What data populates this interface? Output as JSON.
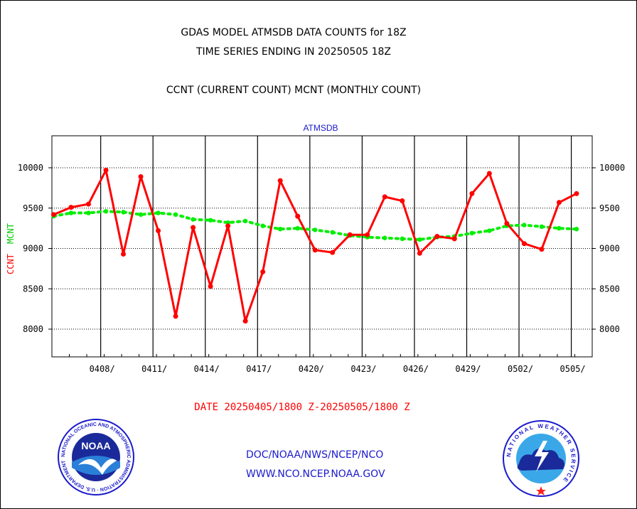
{
  "header": {
    "line1": "GDAS MODEL ATMSDB DATA COUNTS for 18Z",
    "line2": "TIME SERIES ENDING IN 20250505 18Z",
    "line3": "CCNT (CURRENT COUNT) MCNT (MONTHLY COUNT)"
  },
  "footer": {
    "date_range": "DATE 20250405/1800 Z-20250505/1800 Z",
    "org_line": "DOC/NOAA/NWS/NCEP/NCO",
    "url_line": "WWW.NCO.NCEP.NOAA.GOV"
  },
  "logos": {
    "noaa": {
      "icon": "noaa-logo-icon",
      "text": "NOAA",
      "ring_text": "NATIONAL OCEANIC AND ATMOSPHERIC ADMINISTRATION · U.S. DEPARTMENT OF COMMERCE"
    },
    "nws": {
      "icon": "nws-logo-icon",
      "ring_text": "NATIONAL WEATHER SERVICE"
    }
  },
  "colors": {
    "ccnt": "#ff0000",
    "mcnt": "#00ee00",
    "subtitle": "#1a1acc",
    "grid": "#000000"
  },
  "chart_data": {
    "type": "line",
    "title": "ATMSDB",
    "ylabel_left": [
      "CCNT",
      "MCNT"
    ],
    "ylim": [
      7650,
      10400
    ],
    "yticks": [
      8000,
      8500,
      9000,
      9500,
      10000
    ],
    "xticks": [
      "0408/",
      "0411/",
      "0414/",
      "0417/",
      "0420/",
      "0423/",
      "0426/",
      "0429/",
      "0502/",
      "0505/"
    ],
    "grid": true,
    "x_start": "0405/18Z",
    "x_step": "1 day",
    "series": [
      {
        "name": "CCNT",
        "color": "#ff0000",
        "values": [
          9420,
          9510,
          9550,
          9970,
          8930,
          9890,
          9220,
          8160,
          9260,
          8530,
          9280,
          8100,
          8710,
          9840,
          9400,
          8980,
          8950,
          9170,
          9170,
          9640,
          9590,
          8940,
          9150,
          9120,
          9680,
          9930,
          9310,
          9060,
          8990,
          9570,
          9680
        ]
      },
      {
        "name": "MCNT",
        "color": "#00ee00",
        "values": [
          9400,
          9440,
          9440,
          9460,
          9450,
          9420,
          9440,
          9420,
          9360,
          9350,
          9320,
          9340,
          9280,
          9240,
          9250,
          9230,
          9200,
          9160,
          9140,
          9130,
          9120,
          9110,
          9140,
          9150,
          9190,
          9220,
          9280,
          9290,
          9270,
          9250,
          9240
        ]
      }
    ]
  }
}
